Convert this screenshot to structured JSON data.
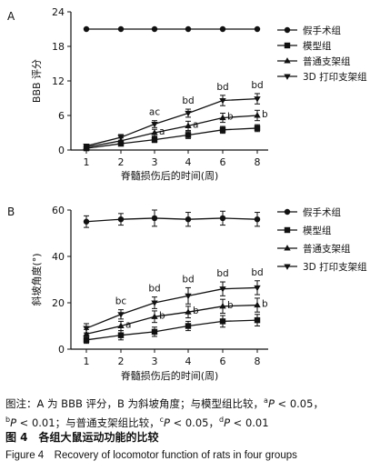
{
  "caption": {
    "note_prefix": "图注：A 为 BBB 评分，B 为斜坡角度；与模型组比较，",
    "note_sup_a": "a",
    "note_p1": "P",
    "note_t1": " < 0.05，",
    "note_sup_b": "b",
    "note_p2": "P",
    "note_t2": " < 0.01；与普通支架组比较，",
    "note_sup_c": "c",
    "note_p3": "P",
    "note_t3": " < 0.05，",
    "note_sup_d": "d",
    "note_p4": "P",
    "note_t4": " < 0.01",
    "title_zh": "图 4　各组大鼠运动功能的比较",
    "title_en": "Figure 4　Recovery of locomotor function of rats in four groups"
  },
  "chart_data": [
    {
      "panel": "A",
      "type": "line",
      "x": [
        1,
        2,
        3,
        4,
        6,
        8
      ],
      "xticks": [
        "1",
        "2",
        "3",
        "4",
        "6",
        "8"
      ],
      "xlabel": "脊髓损伤后的时间(周)",
      "ylabel": "BBB 评分",
      "ylim": [
        0,
        24
      ],
      "yticks": [
        0,
        6,
        12,
        18,
        24
      ],
      "yticklabels": [
        "0",
        "6",
        "12",
        "18",
        "24"
      ],
      "grid": false,
      "legend_position": "top-right",
      "series": [
        {
          "name": "假手术组",
          "marker": "circle",
          "values": [
            21,
            21,
            21,
            21,
            21,
            21
          ],
          "errors": [
            0,
            0,
            0,
            0,
            0,
            0
          ]
        },
        {
          "name": "模型组",
          "marker": "square",
          "values": [
            0.3,
            1.1,
            1.8,
            2.6,
            3.5,
            3.8
          ],
          "errors": [
            0.3,
            0.4,
            0.5,
            0.6,
            0.6,
            0.6
          ]
        },
        {
          "name": "普通支架组",
          "marker": "triangle-up",
          "values": [
            0.5,
            1.6,
            3.0,
            4.2,
            5.6,
            6.0
          ],
          "errors": [
            0.3,
            0.5,
            0.6,
            0.8,
            0.8,
            0.9
          ]
        },
        {
          "name": "3D 打印支架组",
          "marker": "triangle-down",
          "values": [
            0.7,
            2.2,
            4.5,
            6.4,
            8.6,
            8.9
          ],
          "errors": [
            0.3,
            0.5,
            0.6,
            0.7,
            0.9,
            0.9
          ]
        }
      ],
      "annotations": [
        {
          "x": 3,
          "series": 3,
          "text": "ac"
        },
        {
          "x": 4,
          "series": 3,
          "text": "bd"
        },
        {
          "x": 6,
          "series": 3,
          "text": "bd"
        },
        {
          "x": 8,
          "series": 3,
          "text": "bd"
        },
        {
          "x": 3,
          "series": 2,
          "text": "a"
        },
        {
          "x": 4,
          "series": 2,
          "text": "a"
        },
        {
          "x": 6,
          "series": 2,
          "text": "b"
        },
        {
          "x": 8,
          "series": 2,
          "text": "b"
        }
      ]
    },
    {
      "panel": "B",
      "type": "line",
      "x": [
        1,
        2,
        3,
        4,
        6,
        8
      ],
      "xticks": [
        "1",
        "2",
        "3",
        "4",
        "6",
        "8"
      ],
      "xlabel": "脊髓损伤后的时间(周)",
      "ylabel": "斜坡角度(°)",
      "ylim": [
        0,
        60
      ],
      "yticks": [
        0,
        20,
        40,
        60
      ],
      "yticklabels": [
        "0",
        "20",
        "40",
        "60"
      ],
      "grid": false,
      "legend_position": "top-right",
      "series": [
        {
          "name": "假手术组",
          "marker": "circle",
          "values": [
            55,
            56,
            56.5,
            56,
            56.5,
            56
          ],
          "errors": [
            2.5,
            2.5,
            3.5,
            3,
            3,
            3
          ]
        },
        {
          "name": "模型组",
          "marker": "square",
          "values": [
            4,
            6,
            7.5,
            10,
            12,
            12.5
          ],
          "errors": [
            1.5,
            2,
            2,
            2,
            2.5,
            2.5
          ]
        },
        {
          "name": "普通支架组",
          "marker": "triangle-up",
          "values": [
            6.5,
            10,
            14,
            16,
            18.5,
            19
          ],
          "errors": [
            2,
            2,
            2.5,
            2.5,
            3,
            3
          ]
        },
        {
          "name": "3D 打印支架组",
          "marker": "triangle-down",
          "values": [
            9,
            15,
            20,
            23,
            26,
            26.5
          ],
          "errors": [
            2,
            2,
            2.5,
            3.5,
            3,
            3
          ]
        }
      ],
      "annotations": [
        {
          "x": 2,
          "series": 3,
          "text": "bc"
        },
        {
          "x": 3,
          "series": 3,
          "text": "bd"
        },
        {
          "x": 4,
          "series": 3,
          "text": "bd"
        },
        {
          "x": 6,
          "series": 3,
          "text": "bd"
        },
        {
          "x": 8,
          "series": 3,
          "text": "bd"
        },
        {
          "x": 2,
          "series": 2,
          "text": "a"
        },
        {
          "x": 3,
          "series": 2,
          "text": "b"
        },
        {
          "x": 4,
          "series": 2,
          "text": "b"
        },
        {
          "x": 6,
          "series": 2,
          "text": "b"
        },
        {
          "x": 8,
          "series": 2,
          "text": "b"
        }
      ]
    }
  ]
}
